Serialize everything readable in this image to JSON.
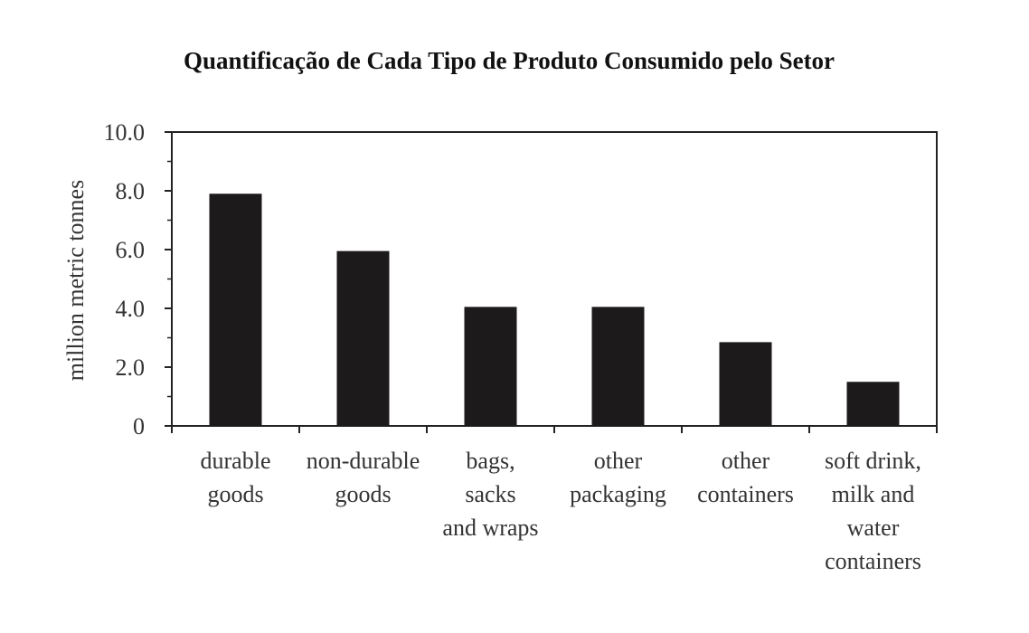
{
  "chart_data": {
    "type": "bar",
    "title": "Quantificação de Cada Tipo de Produto Consumido pelo Setor",
    "xlabel": "",
    "ylabel": "million metric tonnes",
    "ylim": [
      0,
      10
    ],
    "yticks": [
      "0",
      "2.0",
      "4.0",
      "6.0",
      "8.0",
      "10.0"
    ],
    "categories": [
      [
        "durable",
        "goods"
      ],
      [
        "non-durable",
        "goods"
      ],
      [
        "bags,",
        "sacks",
        "and wraps"
      ],
      [
        "other",
        "packaging"
      ],
      [
        "other",
        "containers"
      ],
      [
        "soft drink,",
        "milk and",
        "water",
        "containers"
      ]
    ],
    "values": [
      7.9,
      5.95,
      4.05,
      4.05,
      2.85,
      1.5
    ],
    "bar_color": "#1c1a1a",
    "grid": false,
    "legend": "none"
  }
}
